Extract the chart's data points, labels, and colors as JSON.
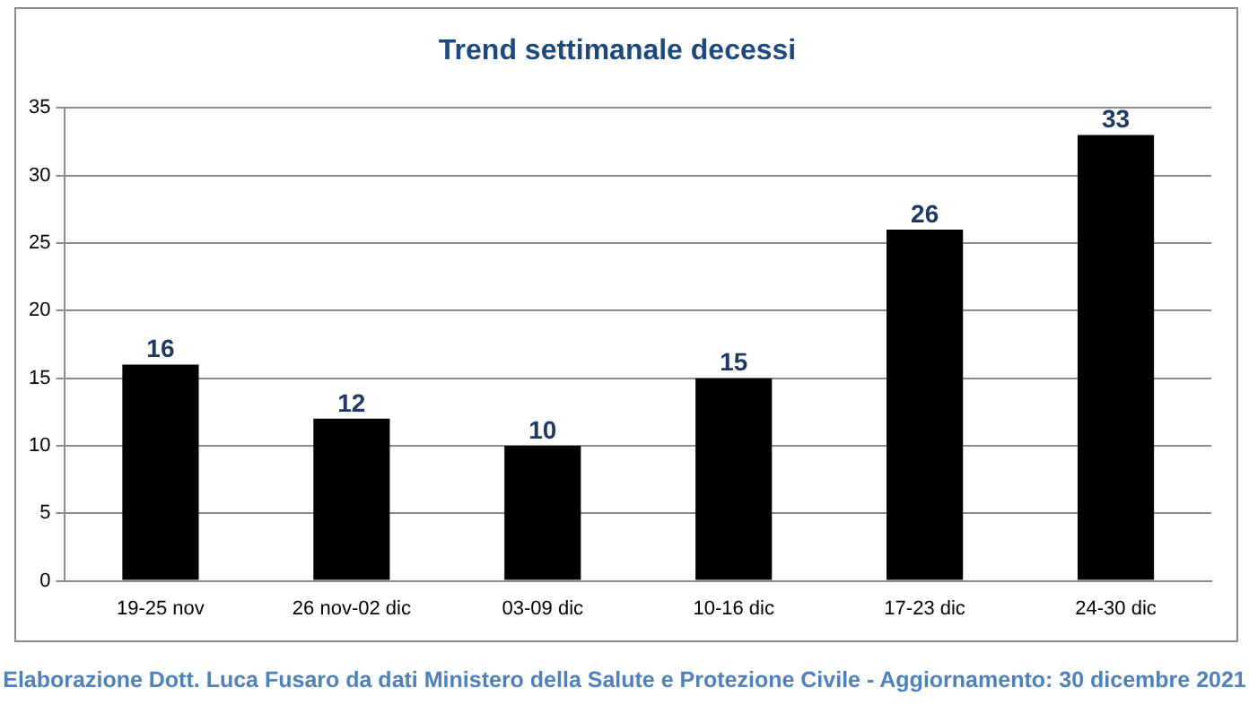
{
  "chart_data": {
    "type": "bar",
    "title": "Trend settimanale decessi",
    "categories": [
      "19-25 nov",
      "26 nov-02 dic",
      "03-09 dic",
      "10-16 dic",
      "17-23 dic",
      "24-30 dic"
    ],
    "values": [
      16,
      12,
      10,
      15,
      26,
      33
    ],
    "color": "#000000",
    "ylim": [
      0,
      35
    ],
    "yticks": [
      0,
      5,
      10,
      15,
      20,
      25,
      30,
      35
    ],
    "grid": "y",
    "data_labels": true,
    "annotations": [
      "Elaborazione Dott. Luca Fusaro da dati Ministero della Salute e Protezione Civile - Aggiornamento: 30 dicembre 2021"
    ]
  }
}
